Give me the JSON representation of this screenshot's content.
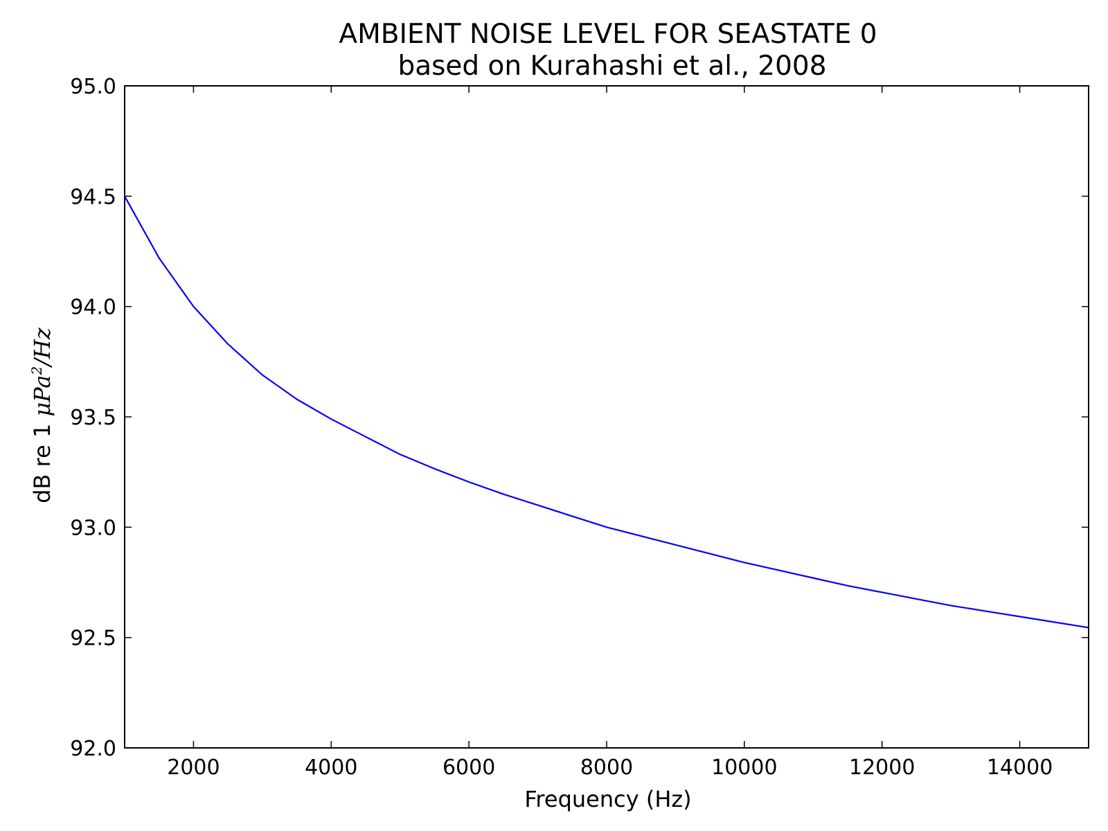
{
  "chart_data": {
    "type": "line",
    "title": "AMBIENT NOISE LEVEL FOR SEASTATE 0",
    "subtitle": "based on Kurahashi et al., 2008",
    "xlabel": "Frequency (Hz)",
    "ylabel": {
      "prefix": "dB re 1 ",
      "mu": "μ",
      "pa": "Pa",
      "exp": "2",
      "suffix": "/Hz"
    },
    "xlim": [
      1000,
      15000
    ],
    "ylim": [
      92.0,
      95.0
    ],
    "x_ticks": [
      2000,
      4000,
      6000,
      8000,
      10000,
      12000,
      14000
    ],
    "x_tick_labels": [
      "2000",
      "4000",
      "6000",
      "8000",
      "10000",
      "12000",
      "14000"
    ],
    "y_ticks": [
      92.0,
      92.5,
      93.0,
      93.5,
      94.0,
      94.5,
      95.0
    ],
    "y_tick_labels": [
      "92.0",
      "92.5",
      "93.0",
      "93.5",
      "94.0",
      "94.5",
      "95.0"
    ],
    "grid": false,
    "series": [
      {
        "color": "#0000ff",
        "x": [
          1000,
          1500,
          2000,
          2500,
          3000,
          3500,
          4000,
          4500,
          5000,
          5500,
          6000,
          6500,
          7000,
          7500,
          8000,
          8500,
          9000,
          9500,
          10000,
          10500,
          11000,
          11500,
          12000,
          12500,
          13000,
          13500,
          14000,
          14500,
          15000
        ],
        "y": [
          94.5,
          94.22,
          94.0,
          93.83,
          93.69,
          93.58,
          93.49,
          93.41,
          93.33,
          93.265,
          93.205,
          93.15,
          93.1,
          93.05,
          93.0,
          92.96,
          92.92,
          92.88,
          92.84,
          92.805,
          92.77,
          92.735,
          92.705,
          92.675,
          92.645,
          92.62,
          92.595,
          92.57,
          92.545
        ]
      }
    ]
  }
}
